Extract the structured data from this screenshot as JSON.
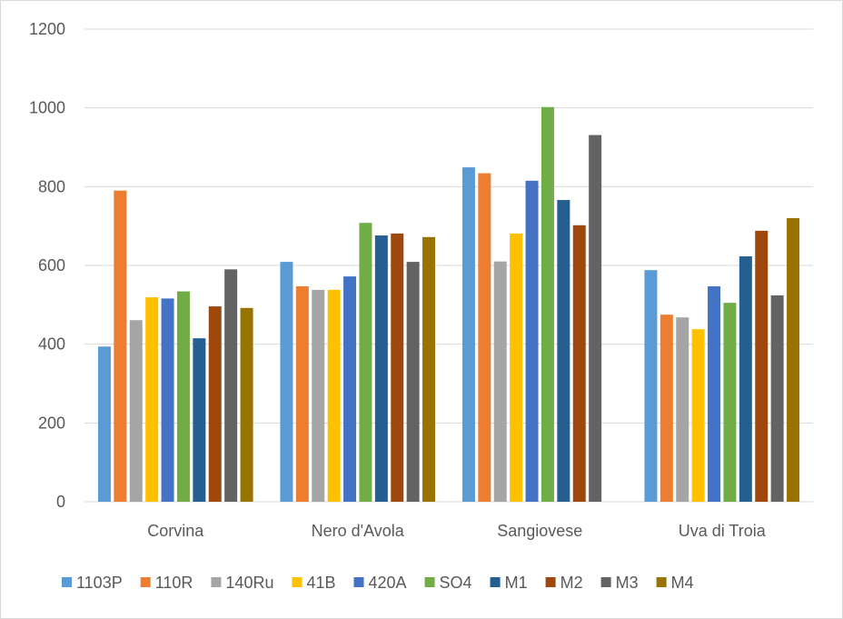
{
  "chart_data": {
    "type": "bar",
    "title": "",
    "xlabel": "",
    "ylabel": "",
    "ylim": [
      0,
      1200
    ],
    "yticks": [
      0,
      200,
      400,
      600,
      800,
      1000,
      1200
    ],
    "grid": true,
    "legend_position": "bottom",
    "categories": [
      "Corvina",
      "Nero d'Avola",
      "Sangiovese",
      "Uva di Troia"
    ],
    "series": [
      {
        "name": "1103P",
        "color": "#5b9bd5",
        "values": [
          394,
          609,
          849,
          588
        ]
      },
      {
        "name": "110R",
        "color": "#ed7d31",
        "values": [
          790,
          547,
          834,
          475
        ]
      },
      {
        "name": "140Ru",
        "color": "#a5a5a5",
        "values": [
          461,
          538,
          610,
          468
        ]
      },
      {
        "name": "41B",
        "color": "#ffc000",
        "values": [
          519,
          538,
          681,
          438
        ]
      },
      {
        "name": "420A",
        "color": "#4472c4",
        "values": [
          516,
          572,
          815,
          547
        ]
      },
      {
        "name": "SO4",
        "color": "#70ad47",
        "values": [
          534,
          708,
          1002,
          505
        ]
      },
      {
        "name": "M1",
        "color": "#255e91",
        "values": [
          415,
          676,
          766,
          623
        ]
      },
      {
        "name": "M2",
        "color": "#9e480e",
        "values": [
          496,
          681,
          702,
          688
        ]
      },
      {
        "name": "M3",
        "color": "#636363",
        "values": [
          590,
          609,
          931,
          524
        ]
      },
      {
        "name": "M4",
        "color": "#997300",
        "values": [
          492,
          672,
          null,
          720
        ]
      }
    ]
  }
}
